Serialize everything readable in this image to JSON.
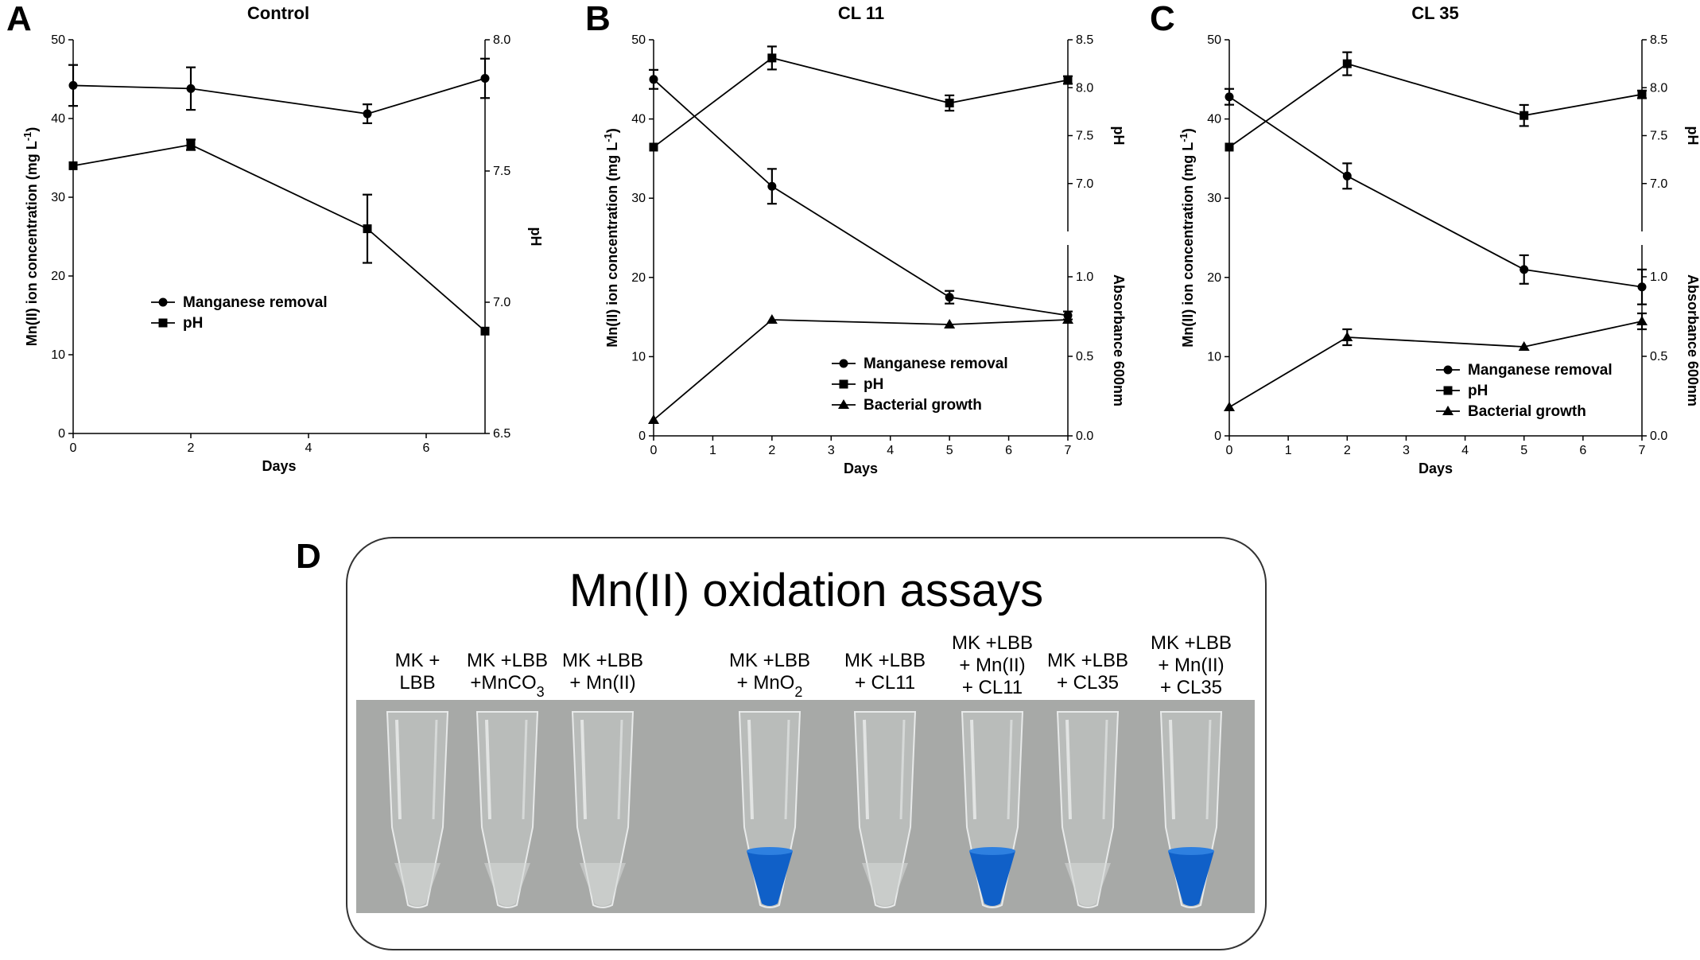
{
  "panels": {
    "A": {
      "letter": "A"
    },
    "B": {
      "letter": "B"
    },
    "C": {
      "letter": "C"
    },
    "D": {
      "letter": "D"
    }
  },
  "chart_data": [
    {
      "id": "A",
      "type": "line",
      "title": "Control",
      "xlabel": "Days",
      "ylabel_left": "Mn(II) ion concentration (mg L",
      "ylabel_left_sup": "-1",
      "ylabel_left_close": ")",
      "ylabel_right": "pH",
      "xlim": [
        0,
        7
      ],
      "xticks": [
        0,
        2,
        4,
        6
      ],
      "ylim_left": [
        0,
        50
      ],
      "yticks_left": [
        0,
        10,
        20,
        30,
        40,
        50
      ],
      "ylim_right": [
        6.5,
        8.0
      ],
      "yticks_right": [
        "6.5",
        "7.0",
        "7.5",
        "8.0"
      ],
      "legend_position": "center-left",
      "series": [
        {
          "name": "Manganese removal",
          "marker": "circle",
          "axis": "left",
          "x": [
            0,
            2,
            5,
            7
          ],
          "y": [
            44.2,
            43.8,
            40.6,
            45.1
          ],
          "err": [
            2.6,
            2.7,
            1.2,
            2.5
          ]
        },
        {
          "name": "pH",
          "marker": "square",
          "axis": "right",
          "x": [
            0,
            2,
            5,
            7
          ],
          "y": [
            7.52,
            7.6,
            7.28,
            6.89
          ],
          "err": [
            0.0,
            0.02,
            0.13,
            0.0
          ]
        }
      ]
    },
    {
      "id": "B",
      "type": "line",
      "title": "CL 11",
      "xlabel": "Days",
      "ylabel_left": "Mn(II) ion concentration (mg L",
      "ylabel_left_sup": "-1",
      "ylabel_left_close": ")",
      "ylabel_right_top": "pH",
      "ylabel_right_bottom": "Absorbance 600nm",
      "xlim": [
        0,
        7
      ],
      "xticks": [
        0,
        1,
        2,
        3,
        4,
        5,
        6,
        7
      ],
      "ylim_left": [
        0,
        50
      ],
      "yticks_left": [
        0,
        10,
        20,
        30,
        40,
        50
      ],
      "ylim_right_top": [
        6.5,
        8.5
      ],
      "yticks_right_top": [
        "7.0",
        "7.5",
        "8.0",
        "8.5"
      ],
      "ylim_right_bottom": [
        0.0,
        1.2
      ],
      "yticks_right_bottom": [
        "0.0",
        "0.5",
        "1.0"
      ],
      "legend_position": "bottom-right",
      "series": [
        {
          "name": "Manganese removal",
          "marker": "circle",
          "axis": "left",
          "x": [
            0,
            2,
            5,
            7
          ],
          "y": [
            45.0,
            31.5,
            17.5,
            15.2
          ],
          "err": [
            1.2,
            2.2,
            0.8,
            0.5
          ]
        },
        {
          "name": "pH",
          "marker": "square",
          "axis": "right_top",
          "x": [
            0,
            2,
            5,
            7
          ],
          "y": [
            7.38,
            8.31,
            7.84,
            8.08
          ],
          "err": [
            0.0,
            0.12,
            0.08,
            0.04
          ]
        },
        {
          "name": "Bacterial growth",
          "marker": "triangle",
          "axis": "right_bottom",
          "x": [
            0,
            2,
            5,
            7
          ],
          "y": [
            0.1,
            0.73,
            0.7,
            0.73
          ],
          "err": [
            0.0,
            0.0,
            0.0,
            0.0
          ]
        }
      ]
    },
    {
      "id": "C",
      "type": "line",
      "title": "CL 35",
      "xlabel": "Days",
      "ylabel_left": "Mn(II) ion concentration (mg L",
      "ylabel_left_sup": "-1",
      "ylabel_left_close": ")",
      "ylabel_right_top": "pH",
      "ylabel_right_bottom": "Absorbance 600nm",
      "xlim": [
        0,
        7
      ],
      "xticks": [
        0,
        1,
        2,
        3,
        4,
        5,
        6,
        7
      ],
      "ylim_left": [
        0,
        50
      ],
      "yticks_left": [
        0,
        10,
        20,
        30,
        40,
        50
      ],
      "ylim_right_top": [
        6.5,
        8.5
      ],
      "yticks_right_top": [
        "7.0",
        "7.5",
        "8.0",
        "8.5"
      ],
      "ylim_right_bottom": [
        0.0,
        1.2
      ],
      "yticks_right_bottom": [
        "0.0",
        "0.5",
        "1.0"
      ],
      "legend_position": "bottom-right",
      "series": [
        {
          "name": "Manganese removal",
          "marker": "circle",
          "axis": "left",
          "x": [
            0,
            2,
            5,
            7
          ],
          "y": [
            42.8,
            32.8,
            21.0,
            18.8
          ],
          "err": [
            1.0,
            1.6,
            1.8,
            2.2
          ]
        },
        {
          "name": "pH",
          "marker": "square",
          "axis": "right_top",
          "x": [
            0,
            2,
            5,
            7
          ],
          "y": [
            7.38,
            8.25,
            7.71,
            7.93
          ],
          "err": [
            0.0,
            0.12,
            0.11,
            0.04
          ]
        },
        {
          "name": "Bacterial growth",
          "marker": "triangle",
          "axis": "right_bottom",
          "x": [
            0,
            2,
            5,
            7
          ],
          "y": [
            0.18,
            0.62,
            0.56,
            0.72
          ],
          "err": [
            0.0,
            0.05,
            0.0,
            0.05
          ]
        }
      ]
    }
  ],
  "assay": {
    "title": "Mn(II) oxidation assays",
    "tubes": [
      {
        "lines": [
          "MK +",
          "LBB"
        ],
        "result": "clear"
      },
      {
        "lines": [
          "MK +LBB",
          "+MnCO3"
        ],
        "result": "clear"
      },
      {
        "lines": [
          "MK +LBB",
          "+ Mn(II)"
        ],
        "result": "clear"
      },
      {
        "lines": [
          "MK +LBB",
          "+ MnO2"
        ],
        "result": "blue"
      },
      {
        "lines": [
          "MK +LBB",
          "+ CL11"
        ],
        "result": "clear"
      },
      {
        "lines": [
          "MK +LBB",
          "+ Mn(II)",
          "+ CL11"
        ],
        "result": "blue"
      },
      {
        "lines": [
          "MK +LBB",
          "+ CL35"
        ],
        "result": "clear"
      },
      {
        "lines": [
          "MK +LBB",
          "+ Mn(II)",
          "+ CL35"
        ],
        "result": "blue"
      }
    ],
    "colors": {
      "blue": "#1060c8",
      "background": "#a7a9a7"
    }
  }
}
